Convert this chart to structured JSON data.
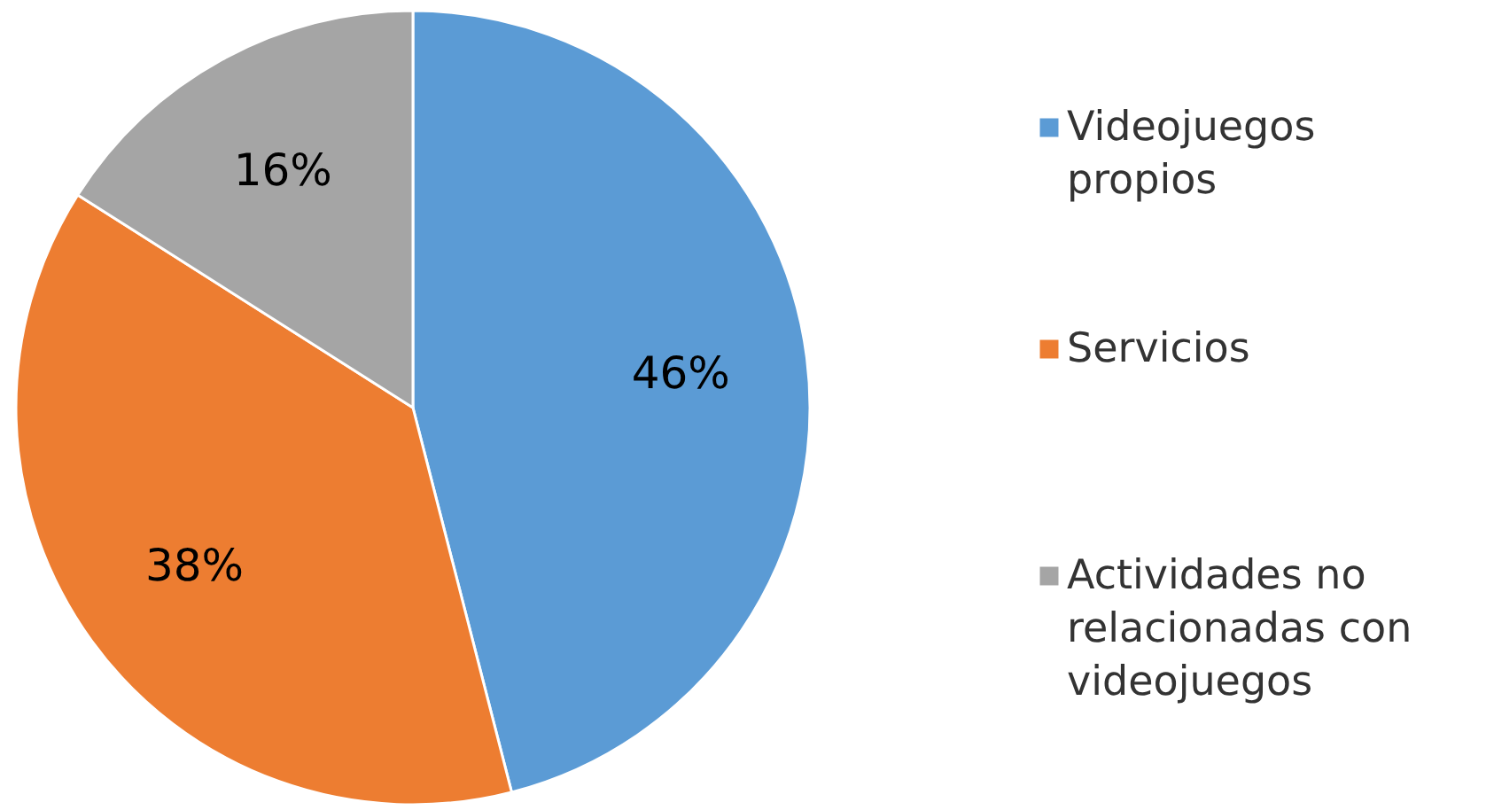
{
  "chart_data": {
    "type": "pie",
    "categories": [
      "Videojuegos propios",
      "Servicios",
      "Actividades no relacionadas con videojuegos"
    ],
    "values": [
      46,
      38,
      16
    ],
    "colors": [
      "#5b9bd5",
      "#ed7d31",
      "#a5a5a5"
    ],
    "value_labels": [
      "46%",
      "38%",
      "16%"
    ],
    "legend": "right"
  }
}
